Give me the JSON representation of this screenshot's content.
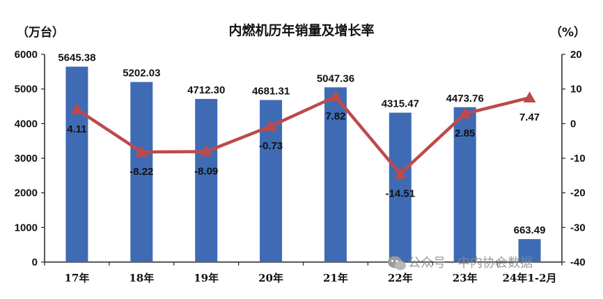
{
  "chart_data": {
    "type": "bar+line",
    "title": "内燃机历年销量及增长率",
    "left_unit": "（万台）",
    "right_unit": "（%）",
    "categories": [
      "17年",
      "18年",
      "19年",
      "20年",
      "21年",
      "22年",
      "23年",
      "24年1-2月"
    ],
    "bar_series": {
      "values": [
        5645.38,
        5202.03,
        4712.3,
        4681.31,
        5047.36,
        4315.47,
        4473.76,
        663.49
      ],
      "labels": [
        "5645.38",
        "5202.03",
        "4712.30",
        "4681.31",
        "5047.36",
        "4315.47",
        "4473.76",
        "663.49"
      ],
      "color": "#3f6bb5"
    },
    "line_series": {
      "values": [
        4.11,
        -8.22,
        -8.09,
        -0.73,
        7.82,
        -14.51,
        2.85,
        7.47
      ],
      "labels": [
        "4.11",
        "-8.22",
        "-8.09",
        "-0.73",
        "7.82",
        "-14.51",
        "2.85",
        "7.47"
      ],
      "color": "#bd4a4a"
    },
    "y_left": {
      "min": 0,
      "max": 6000,
      "ticks": [
        "0",
        "1000",
        "2000",
        "3000",
        "4000",
        "5000",
        "6000"
      ]
    },
    "y_right": {
      "min": -40,
      "max": 20,
      "ticks": [
        "-40",
        "-30",
        "-20",
        "-10",
        "0",
        "10",
        "20"
      ]
    },
    "grid": false,
    "legend": "none"
  },
  "watermark": "公众号 · 中内协会数据",
  "watermark_icon": "wechat-icon"
}
